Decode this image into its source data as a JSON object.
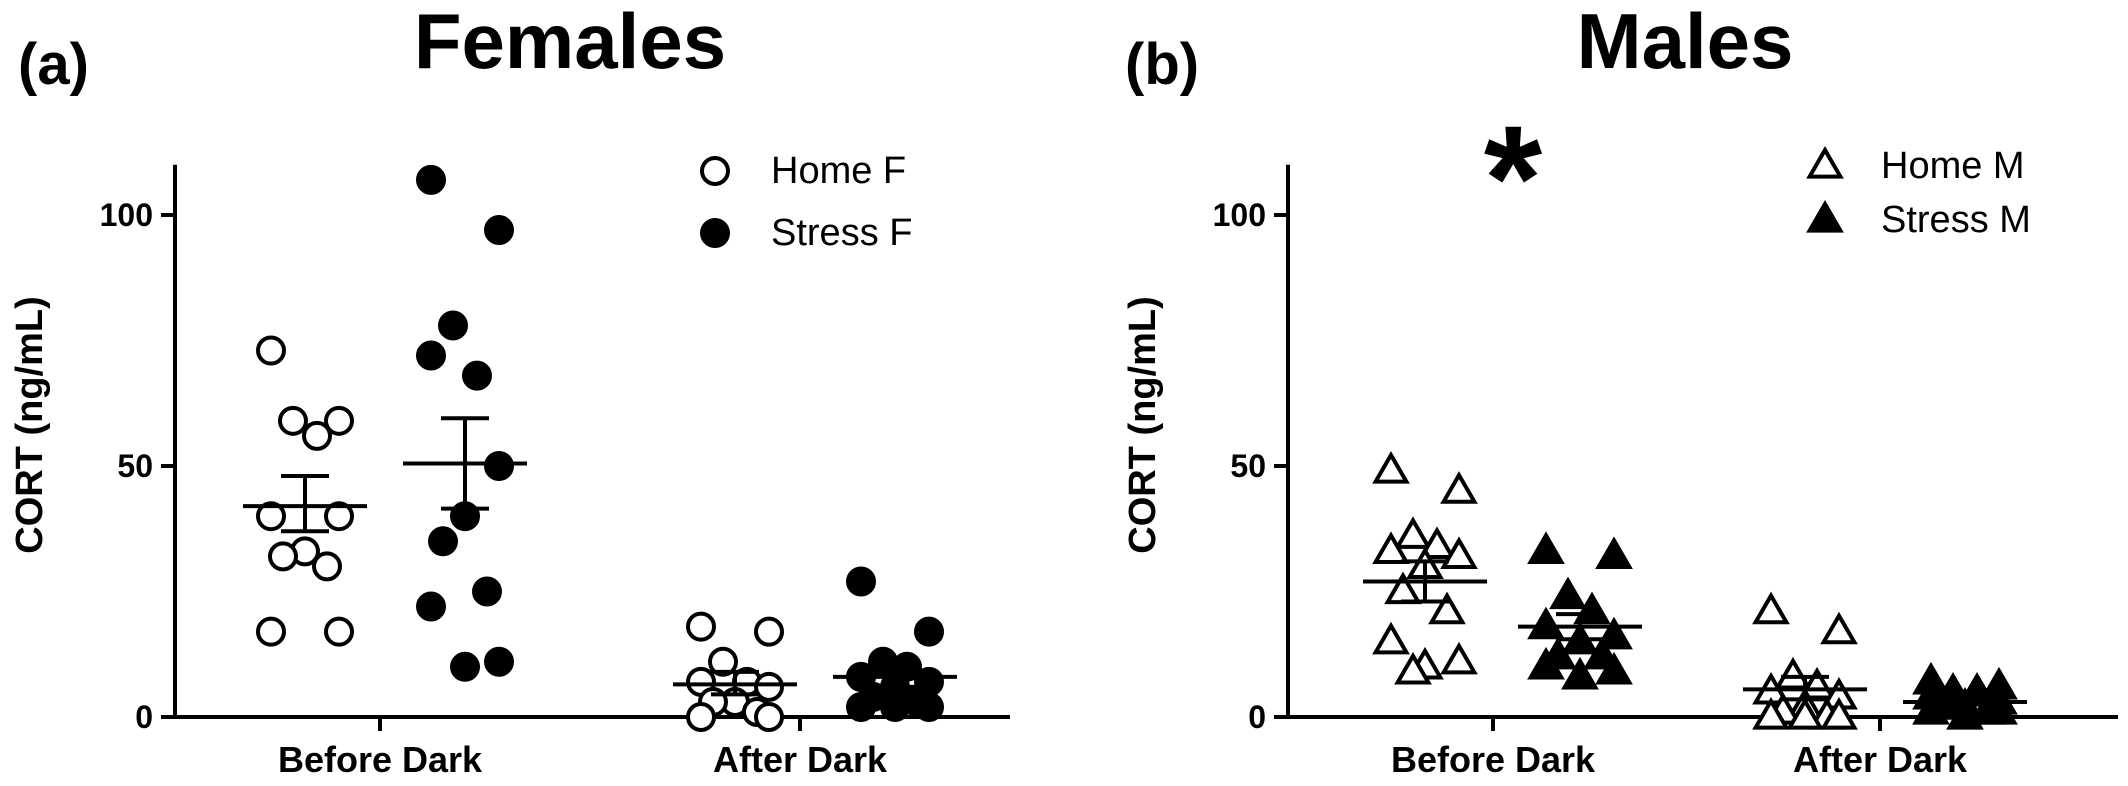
{
  "chart_data": [
    {
      "panel_label": "(a)",
      "title": "Females",
      "type": "scatter",
      "ylabel": "CORT (ng/mL)",
      "ylim": [
        0,
        110
      ],
      "yticks": [
        0,
        50,
        100
      ],
      "categories": [
        "Before Dark",
        "After Dark"
      ],
      "legend_position": "top-right",
      "marker": "circle",
      "series": [
        {
          "name": "Home F",
          "fill": "open",
          "groups": [
            {
              "category": "Before Dark",
              "mean": 42,
              "sem_low": 37,
              "sem_high": 48,
              "points": [
                73,
                59,
                59,
                56,
                40,
                40,
                33,
                32,
                30,
                17,
                17
              ]
            },
            {
              "category": "After Dark",
              "mean": 6.5,
              "sem_low": 4.5,
              "sem_high": 9,
              "points": [
                18,
                17,
                11,
                7,
                7,
                6,
                3,
                3,
                1,
                0,
                0
              ]
            }
          ]
        },
        {
          "name": "Stress F",
          "fill": "filled",
          "groups": [
            {
              "category": "Before Dark",
              "mean": 50.5,
              "sem_low": 41.5,
              "sem_high": 59.5,
              "points": [
                107,
                97,
                78,
                68,
                72,
                50,
                40,
                35,
                25,
                22,
                11,
                10
              ]
            },
            {
              "category": "After Dark",
              "mean": 8,
              "sem_low": 6,
              "sem_high": 10,
              "points": [
                27,
                17,
                11,
                10,
                8,
                7,
                6,
                4,
                3,
                2,
                2,
                2
              ]
            }
          ]
        }
      ]
    },
    {
      "panel_label": "(b)",
      "title": "Males",
      "type": "scatter",
      "ylabel": "CORT (ng/mL)",
      "ylim": [
        0,
        110
      ],
      "yticks": [
        0,
        50,
        100
      ],
      "categories": [
        "Before Dark",
        "After Dark"
      ],
      "legend_position": "top-right",
      "marker": "triangle",
      "annotation": "*",
      "series": [
        {
          "name": "Home M",
          "fill": "open",
          "groups": [
            {
              "category": "Before Dark",
              "mean": 27,
              "sem_low": 23,
              "sem_high": 31,
              "points": [
                49,
                45,
                36,
                34,
                33,
                32,
                30,
                25,
                21,
                15,
                11,
                10,
                9
              ]
            },
            {
              "category": "After Dark",
              "mean": 5.5,
              "sem_low": 3.5,
              "sem_high": 8,
              "points": [
                21,
                17,
                8,
                6,
                5,
                4,
                2,
                1,
                0,
                0,
                0,
                0
              ]
            }
          ]
        },
        {
          "name": "Stress M",
          "fill": "filled",
          "groups": [
            {
              "category": "Before Dark",
              "mean": 18,
              "sem_low": 15.5,
              "sem_high": 20.5,
              "points": [
                33,
                32,
                24,
                21,
                18,
                16,
                15,
                12,
                12,
                10,
                9,
                8
              ]
            },
            {
              "category": "After Dark",
              "mean": 3,
              "sem_low": 2.5,
              "sem_high": 4,
              "points": [
                7,
                6,
                5,
                5,
                4,
                3,
                2,
                2,
                1,
                1,
                1,
                0
              ]
            }
          ]
        }
      ]
    }
  ]
}
